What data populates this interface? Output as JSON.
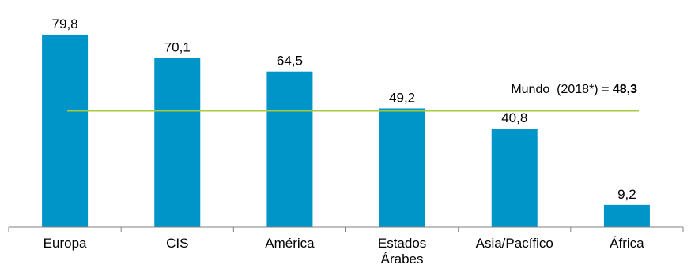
{
  "chart_data": {
    "type": "bar",
    "categories": [
      "Europa",
      "CIS",
      "América",
      "Estados Árabes",
      "Asia/Pacífico",
      "África"
    ],
    "category_lines": [
      [
        "Europa"
      ],
      [
        "CIS"
      ],
      [
        "América"
      ],
      [
        "Estados",
        "Árabes"
      ],
      [
        "Asia/Pacífico"
      ],
      [
        "África"
      ]
    ],
    "values": [
      79.8,
      70.1,
      64.5,
      49.2,
      40.8,
      9.2
    ],
    "value_labels": [
      "79,8",
      "70,1",
      "64,5",
      "49,2",
      "40,8",
      "9,2"
    ],
    "ylim": [
      0,
      85
    ],
    "grid": false,
    "reference_line": {
      "label_prefix": "Mundo  (2018*) = ",
      "value_label": "48,3",
      "value": 48.3
    },
    "colors": {
      "bars": "#0095c8",
      "reference_line": "#a8c93a"
    }
  }
}
